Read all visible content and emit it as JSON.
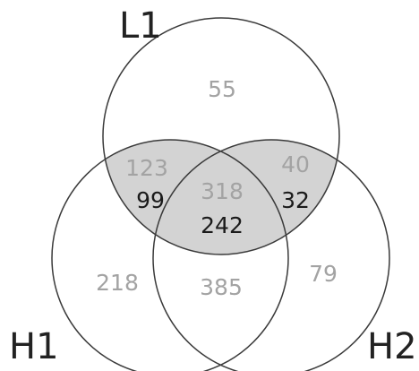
{
  "sets": {
    "top": "L1",
    "left": "H1",
    "right": "H2"
  },
  "regions": {
    "l1_only": "55",
    "h1_only": "218",
    "h2_only": "79",
    "l1_h1_gray": "123",
    "l1_h1_dark": "99",
    "l1_h2_gray": "40",
    "l1_h2_dark": "32",
    "all_gray": "318",
    "all_dark": "242",
    "h1_h2": "385"
  },
  "colors": {
    "shade": "#d3d3d3",
    "outline": "#3a3a3a",
    "gray_text": "#a3a3a3",
    "dark_text": "#1b1b1b"
  }
}
